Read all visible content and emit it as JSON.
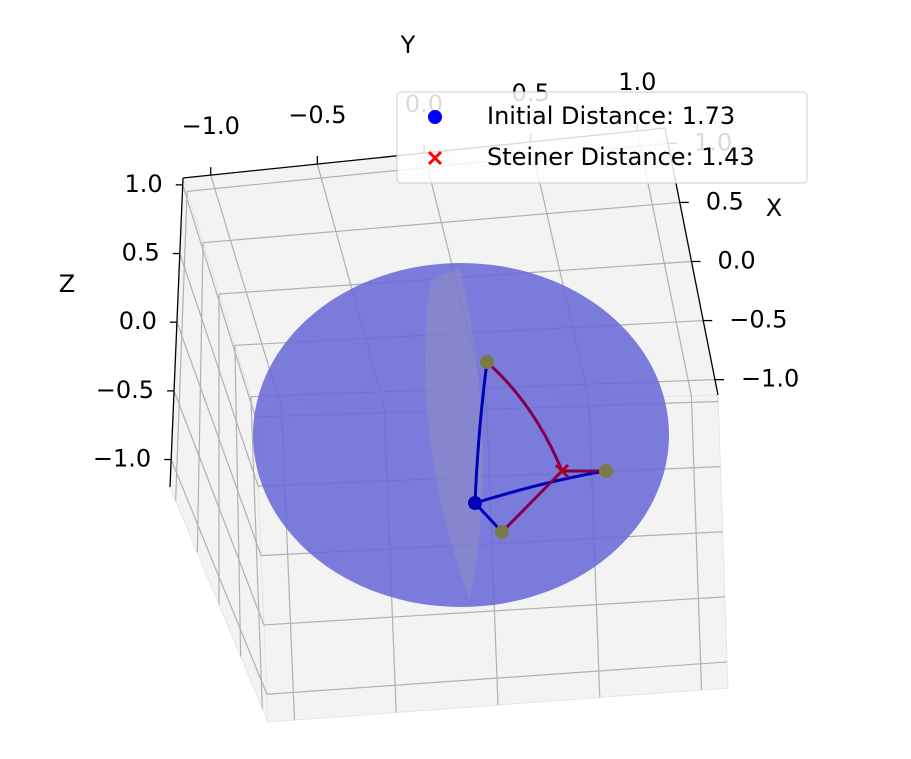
{
  "chart_data": {
    "type": "scatter3d",
    "xlabel": "X",
    "ylabel": "Y",
    "zlabel": "Z",
    "xlim": [
      -1.13,
      1.13
    ],
    "ylim": [
      -1.13,
      1.13
    ],
    "zlim": [
      -1.2,
      1.05
    ],
    "xticks": [
      {
        "value": -1,
        "label": "−1.0"
      },
      {
        "value": -0.5,
        "label": "−0.5"
      },
      {
        "value": 0,
        "label": "0.0"
      },
      0.5,
      {
        "value": 1,
        "label": "1.0"
      }
    ],
    "yticks": [
      {
        "value": -1,
        "label": "−1.0"
      },
      {
        "value": -0.5,
        "label": "−0.5"
      },
      {
        "value": 0,
        "label": "0.0"
      },
      0.5,
      {
        "value": 1,
        "label": "1.0"
      }
    ],
    "zticks": [
      {
        "value": -1,
        "label": "−1.0"
      },
      {
        "value": -0.5,
        "label": "−0.5"
      },
      {
        "value": 0,
        "label": "0.0"
      },
      0.5,
      {
        "value": 1,
        "label": "1.0"
      }
    ],
    "grid": true,
    "series": [
      {
        "name": "Initial Distance: 1.73",
        "color": "#0000ff",
        "marker": "o"
      },
      {
        "name": "Steiner Distance: 1.43",
        "color": "#ff0000",
        "marker": "x"
      }
    ]
  }
}
